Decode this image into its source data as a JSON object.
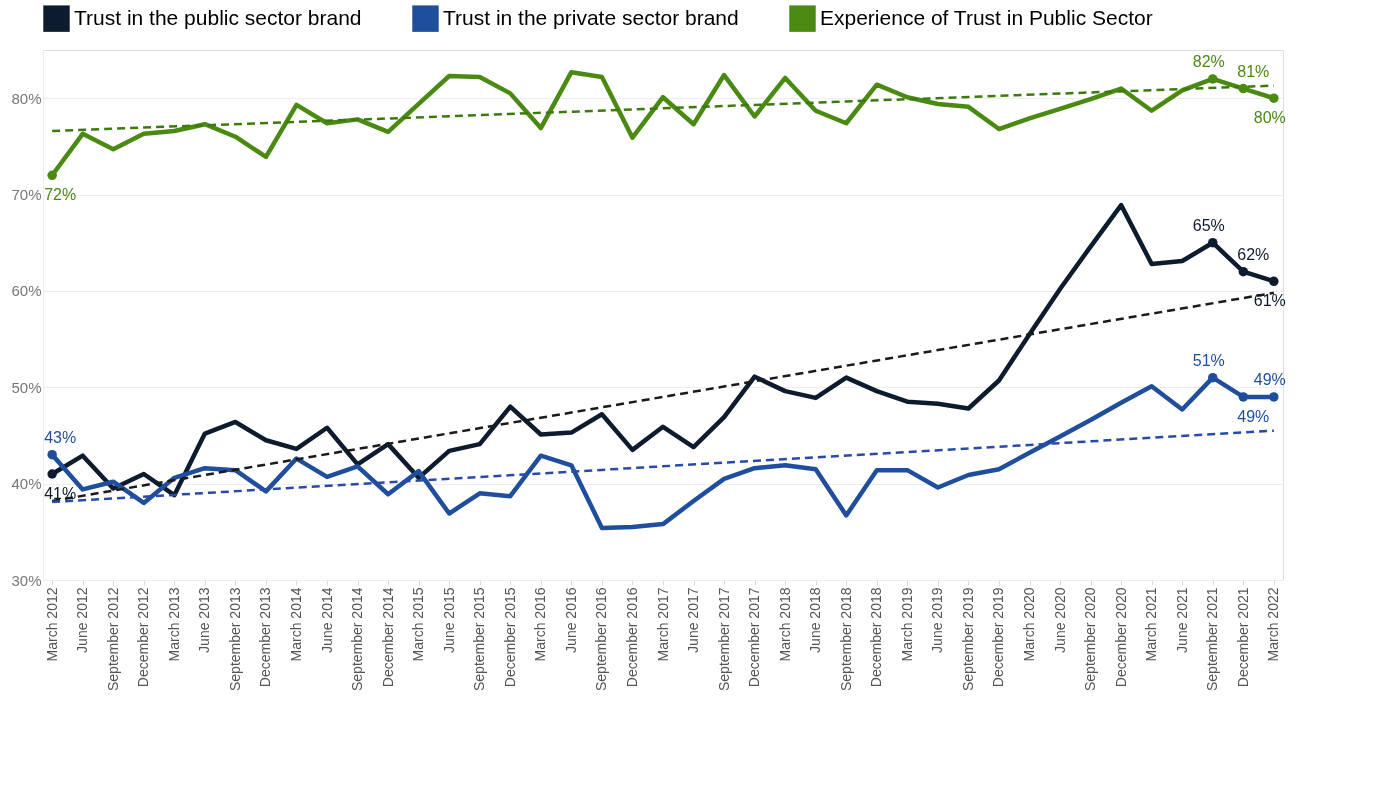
{
  "chart_data": {
    "type": "line",
    "categories": [
      "March 2012",
      "June 2012",
      "September 2012",
      "December 2012",
      "March 2013",
      "June 2013",
      "September 2013",
      "December 2013",
      "March 2014",
      "June 2014",
      "September 2014",
      "December 2014",
      "March 2015",
      "June 2015",
      "September 2015",
      "December 2015",
      "March 2016",
      "June 2016",
      "September 2016",
      "December 2016",
      "March 2017",
      "June 2017",
      "September 2017",
      "December 2017",
      "March 2018",
      "June 2018",
      "September 2018",
      "December 2018",
      "March 2019",
      "June 2019",
      "September 2019",
      "December 2019",
      "March 2020",
      "June 2020",
      "September 2020",
      "December 2020",
      "March 2021",
      "June 2021",
      "September 2021",
      "December 2021",
      "March 2022"
    ],
    "series": [
      {
        "name": "Trust in the public sector brand",
        "color": "#0d1b2e",
        "line_style": "solid",
        "values": [
          41,
          42.9,
          39.5,
          41.0,
          38.8,
          45.2,
          46.4,
          44.5,
          43.6,
          45.8,
          42.0,
          44.1,
          40.6,
          43.4,
          44.1,
          48.0,
          45.1,
          45.3,
          47.2,
          43.5,
          45.9,
          43.8,
          46.9,
          51.1,
          49.6,
          48.9,
          51.0,
          49.6,
          48.5,
          48.3,
          47.8,
          50.7,
          55.5,
          60.2,
          64.6,
          68.9,
          62.8,
          63.1,
          65,
          62,
          61
        ],
        "value_labels": [
          "41%",
          null,
          null,
          null,
          null,
          null,
          null,
          null,
          null,
          null,
          null,
          null,
          null,
          null,
          null,
          null,
          null,
          null,
          null,
          null,
          null,
          null,
          null,
          null,
          null,
          null,
          null,
          null,
          null,
          null,
          null,
          null,
          null,
          null,
          null,
          null,
          null,
          null,
          "65%",
          "62%",
          "61%"
        ]
      },
      {
        "name": "Trust in the private sector brand",
        "color": "#1f4e9c",
        "line_style": "solid",
        "values": [
          43,
          39.4,
          40.2,
          38.0,
          40.6,
          41.6,
          41.4,
          39.2,
          42.6,
          40.7,
          41.8,
          38.9,
          41.3,
          36.9,
          39.0,
          38.7,
          42.9,
          41.9,
          35.4,
          35.5,
          35.8,
          38.2,
          40.5,
          41.6,
          41.9,
          41.5,
          36.7,
          41.4,
          41.4,
          39.6,
          40.9,
          41.5,
          43.2,
          44.9,
          46.6,
          48.4,
          50.1,
          47.7,
          51,
          49,
          49
        ],
        "value_labels": [
          "43%",
          null,
          null,
          null,
          null,
          null,
          null,
          null,
          null,
          null,
          null,
          null,
          null,
          null,
          null,
          null,
          null,
          null,
          null,
          null,
          null,
          null,
          null,
          null,
          null,
          null,
          null,
          null,
          null,
          null,
          null,
          null,
          null,
          null,
          null,
          null,
          null,
          null,
          "51%",
          "49%",
          "49%"
        ]
      },
      {
        "name": "Experience of Trust in Public Sector",
        "color": "#4a8a12",
        "line_style": "solid",
        "values": [
          72,
          76.3,
          74.7,
          76.3,
          76.6,
          77.3,
          76.0,
          73.9,
          79.3,
          77.4,
          77.8,
          76.5,
          79.4,
          82.3,
          82.2,
          80.5,
          76.9,
          82.7,
          82.2,
          75.9,
          80.1,
          77.3,
          82.4,
          78.1,
          82.1,
          78.7,
          77.4,
          81.4,
          80.1,
          79.4,
          79.1,
          76.8,
          77.9,
          78.9,
          79.9,
          81.0,
          78.7,
          80.8,
          82,
          81,
          80
        ],
        "value_labels": [
          "72%",
          null,
          null,
          null,
          null,
          null,
          null,
          null,
          null,
          null,
          null,
          null,
          null,
          null,
          null,
          null,
          null,
          null,
          null,
          null,
          null,
          null,
          null,
          null,
          null,
          null,
          null,
          null,
          null,
          null,
          null,
          null,
          null,
          null,
          null,
          null,
          null,
          null,
          "82%",
          "81%",
          "80%"
        ]
      },
      {
        "color": "#1a1a1a",
        "line_style": "dashed",
        "values": [
          38.2,
          null,
          null,
          null,
          null,
          null,
          null,
          null,
          null,
          null,
          null,
          null,
          null,
          null,
          null,
          null,
          null,
          null,
          null,
          null,
          null,
          null,
          null,
          null,
          null,
          null,
          null,
          null,
          null,
          null,
          null,
          null,
          null,
          null,
          null,
          null,
          null,
          null,
          null,
          null,
          59.8
        ]
      },
      {
        "color": "#2a4aa8",
        "line_style": "dashed",
        "values": [
          38.1,
          null,
          null,
          null,
          null,
          null,
          null,
          null,
          null,
          null,
          null,
          null,
          null,
          null,
          null,
          null,
          null,
          null,
          null,
          null,
          null,
          null,
          null,
          null,
          null,
          null,
          null,
          null,
          null,
          null,
          null,
          null,
          null,
          null,
          null,
          null,
          null,
          null,
          null,
          null,
          45.5
        ]
      },
      {
        "color": "#3d7a0e",
        "line_style": "dashed",
        "values": [
          76.6,
          null,
          null,
          null,
          null,
          null,
          null,
          null,
          null,
          null,
          null,
          null,
          null,
          null,
          null,
          null,
          null,
          null,
          null,
          null,
          null,
          null,
          null,
          null,
          null,
          null,
          null,
          null,
          null,
          null,
          null,
          null,
          null,
          null,
          null,
          null,
          null,
          null,
          null,
          null,
          81.3
        ]
      }
    ],
    "ylim": [
      30,
      85
    ],
    "yticks": [
      {
        "value": 30,
        "label": "30%"
      },
      {
        "value": 40,
        "label": "40%"
      },
      {
        "value": 50,
        "label": "50%"
      },
      {
        "value": 60,
        "label": "60%"
      },
      {
        "value": 70,
        "label": "70%"
      },
      {
        "value": 80,
        "label": "80%"
      }
    ],
    "grid": "y",
    "legend": "top",
    "marker": "none"
  }
}
